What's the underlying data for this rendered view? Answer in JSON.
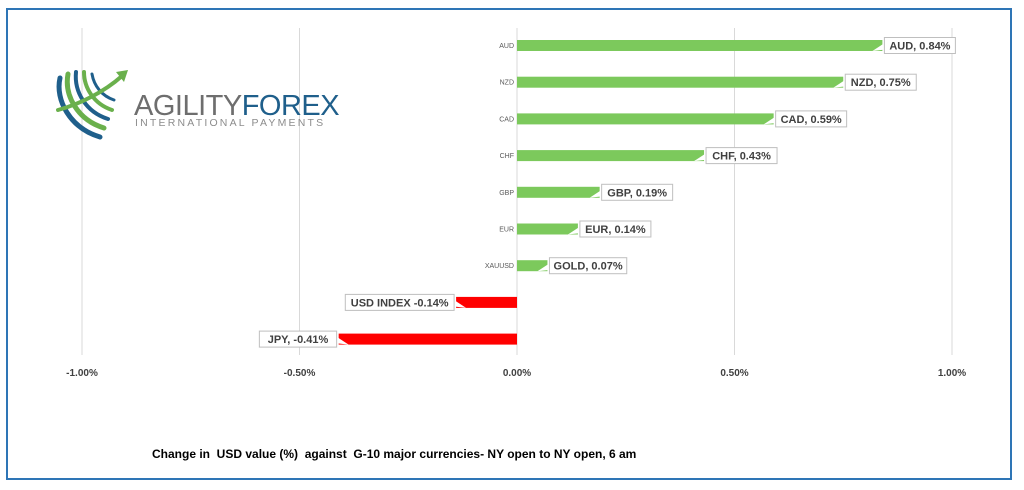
{
  "logo": {
    "word1": "AGILITY",
    "word2": "FOREX",
    "tagline": "INTERNATIONAL PAYMENTS",
    "colors": {
      "word1": "#6e6e6e",
      "word2": "#1f5f8b",
      "swoosh_green": "#6ab04c",
      "swoosh_blue": "#1f5f8b"
    }
  },
  "caption": "Change in  USD value (%)  against  G-10 major currencies- NY open to NY open, 6 am",
  "chart_data": {
    "type": "bar",
    "orientation": "horizontal",
    "categories": [
      "AUD",
      "NZD",
      "CAD",
      "CHF",
      "GBP",
      "EUR",
      "XAUUSD",
      "",
      ""
    ],
    "values": [
      0.84,
      0.75,
      0.59,
      0.43,
      0.19,
      0.14,
      0.07,
      -0.14,
      -0.41
    ],
    "data_labels": [
      "AUD, 0.84%",
      "NZD, 0.75%",
      "CAD, 0.59%",
      "CHF, 0.43%",
      "GBP, 0.19%",
      "EUR, 0.14%",
      "GOLD, 0.07%",
      "USD INDEX -0.14%",
      "JPY, -0.41%"
    ],
    "xlim": [
      -1.0,
      1.0
    ],
    "x_ticks": [
      -1.0,
      -0.5,
      0.0,
      0.5,
      1.0
    ],
    "x_tick_labels": [
      "-1.00%",
      "-0.50%",
      "0.00%",
      "0.50%",
      "1.00%"
    ],
    "grid": true,
    "legend": "none",
    "colors": {
      "positive": "#7cc95c",
      "negative": "#ff0000",
      "grid": "#d9d9d9"
    }
  }
}
